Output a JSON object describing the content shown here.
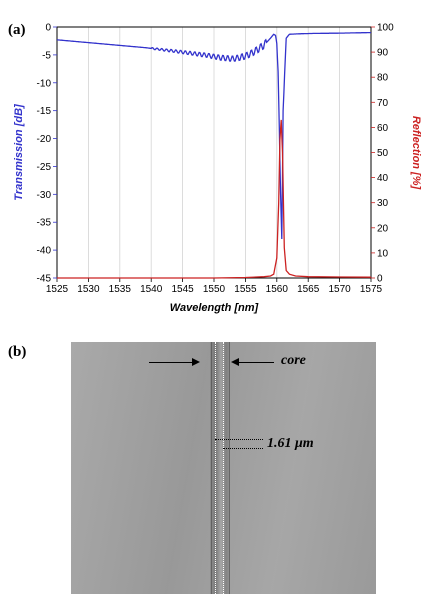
{
  "panel_a_label": "(a)",
  "panel_b_label": "(b)",
  "chart_data": {
    "type": "line",
    "xlabel": "Wavelength [nm]",
    "ylabel_left": "Transmission [dB]",
    "ylabel_right": "Reflection [%]",
    "xlim": [
      1525,
      1575
    ],
    "ylim_left": [
      -45,
      0
    ],
    "ylim_right": [
      0,
      100
    ],
    "x_ticks": [
      1525,
      1530,
      1535,
      1540,
      1545,
      1550,
      1555,
      1560,
      1565,
      1570,
      1575
    ],
    "y_ticks_left": [
      0,
      -5,
      -10,
      -15,
      -20,
      -25,
      -30,
      -35,
      -40,
      -45
    ],
    "y_ticks_right": [
      100,
      90,
      80,
      70,
      60,
      50,
      40,
      30,
      20,
      10,
      0
    ],
    "grid": "vertical",
    "series": [
      {
        "name": "Transmission",
        "axis": "left",
        "color": "#3333cc",
        "x": [
          1525,
          1527,
          1530,
          1533,
          1536,
          1539,
          1542,
          1545,
          1547,
          1549,
          1550,
          1551,
          1552,
          1553,
          1554,
          1555,
          1556,
          1557,
          1558,
          1559,
          1559.5,
          1559.8,
          1560,
          1560.2,
          1560.4,
          1560.6,
          1560.8,
          1561,
          1561.5,
          1562,
          1564,
          1566,
          1570,
          1575
        ],
        "y": [
          -2.3,
          -2.5,
          -2.8,
          -3.1,
          -3.4,
          -3.7,
          -4.1,
          -4.5,
          -4.8,
          -5.1,
          -5.3,
          -5.5,
          -5.6,
          -5.7,
          -5.5,
          -5.2,
          -4.7,
          -4.0,
          -3.2,
          -2.0,
          -1.3,
          -1.5,
          -3.0,
          -8.0,
          -18.0,
          -30.0,
          -38.0,
          -15.0,
          -2.0,
          -1.3,
          -1.2,
          -1.15,
          -1.1,
          -1.0
        ]
      },
      {
        "name": "Reflection",
        "axis": "right",
        "color": "#cc2222",
        "x": [
          1525,
          1550,
          1555,
          1558,
          1559,
          1559.5,
          1560,
          1560.3,
          1560.5,
          1560.7,
          1560.9,
          1561.2,
          1561.5,
          1562,
          1563,
          1565,
          1570,
          1575
        ],
        "y": [
          0,
          0,
          0.2,
          0.5,
          0.8,
          1.5,
          8,
          30,
          55,
          63,
          50,
          12,
          3,
          1.5,
          0.8,
          0.5,
          0.4,
          0.3
        ]
      }
    ]
  },
  "micrograph": {
    "core_label": "core",
    "measurement_label": "1.61 μm"
  }
}
